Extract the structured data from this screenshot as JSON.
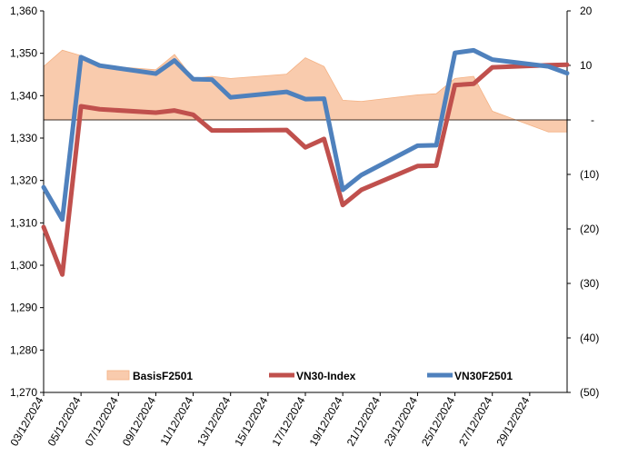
{
  "chart_data": {
    "type": "line",
    "title": "",
    "x": [
      "03/12/2024",
      "04/12/2024",
      "05/12/2024",
      "06/12/2024",
      "09/12/2024",
      "10/12/2024",
      "11/12/2024",
      "12/12/2024",
      "13/12/2024",
      "16/12/2024",
      "17/12/2024",
      "18/12/2024",
      "19/12/2024",
      "20/12/2024",
      "23/12/2024",
      "24/12/2024",
      "25/12/2024",
      "26/12/2024",
      "27/12/2024",
      "30/12/2024",
      "31/12/2024"
    ],
    "x_tick_labels": [
      "03/12/2024",
      "05/12/2024",
      "07/12/2024",
      "09/12/2024",
      "11/12/2024",
      "13/12/2024",
      "15/12/2024",
      "17/12/2024",
      "19/12/2024",
      "21/12/2024",
      "23/12/2024",
      "25/12/2024",
      "27/12/2024",
      "29/12/2024"
    ],
    "x_range": [
      "03/12/2024",
      "31/12/2024"
    ],
    "y_left": {
      "range": [
        1270,
        1360
      ],
      "ticks": [
        "1,270",
        "1,280",
        "1,290",
        "1,300",
        "1,310",
        "1,320",
        "1,330",
        "1,340",
        "1,350",
        "1,360"
      ]
    },
    "y_right": {
      "range": [
        -50,
        20
      ],
      "ticks": [
        "(50)",
        "(40)",
        "(30)",
        "(20)",
        "(10)",
        "-",
        "10",
        "20"
      ]
    },
    "grid": false,
    "legend_position": "bottom-inside",
    "series": [
      {
        "name": "BasisF2501",
        "type": "area",
        "axis": "right",
        "color": "#f9cbad",
        "values": [
          9.8,
          12.8,
          11.8,
          10,
          9.2,
          12,
          7.6,
          8,
          7.6,
          8.4,
          11.4,
          9.8,
          3.6,
          3.4,
          4.6,
          4.8,
          7.6,
          8,
          1.6,
          -2.2,
          -2.2
        ]
      },
      {
        "name": "VN30-Index",
        "type": "line",
        "axis": "left",
        "color": "#c0504d",
        "values": [
          1309,
          1297.8,
          1337.5,
          1336.8,
          1336,
          1336.5,
          1335.5,
          1331.8,
          1331.8,
          1331.9,
          1327.8,
          1329.8,
          1314.2,
          1317.8,
          1323.4,
          1323.5,
          1342.5,
          1342.8,
          1346.7,
          1347.2,
          1347.3
        ]
      },
      {
        "name": "VN30F2501",
        "type": "line",
        "axis": "left",
        "color": "#4f81bd",
        "values": [
          1318.4,
          1310.8,
          1349.1,
          1347.1,
          1345.2,
          1348.3,
          1343.9,
          1343.8,
          1339.6,
          1340.9,
          1339.2,
          1339.3,
          1317.8,
          1321.3,
          1328.2,
          1328.3,
          1350.1,
          1350.7,
          1348.5,
          1346.9,
          1345.3
        ]
      }
    ]
  }
}
